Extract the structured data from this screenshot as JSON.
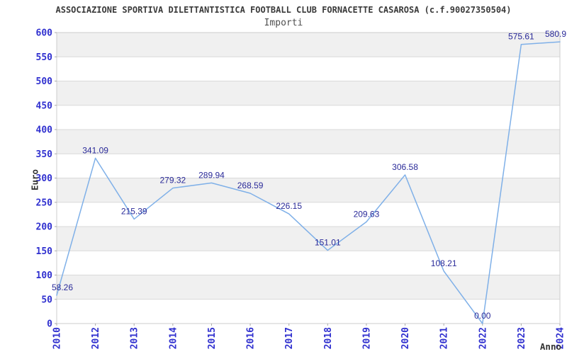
{
  "chart_data": {
    "type": "line",
    "title": "ASSOCIAZIONE SPORTIVA DILETTANTISTICA FOOTBALL CLUB FORNACETTE CASAROSA (c.f.90027350504)",
    "subtitle": "Importi",
    "xlabel": "Anno",
    "ylabel": "Euro",
    "categories": [
      "2010",
      "2012",
      "2013",
      "2014",
      "2015",
      "2016",
      "2017",
      "2018",
      "2019",
      "2020",
      "2021",
      "2022",
      "2023",
      "2024"
    ],
    "values": [
      58.26,
      341.09,
      215.39,
      279.32,
      289.94,
      268.59,
      226.15,
      151.01,
      209.63,
      306.58,
      108.21,
      0.0,
      575.61,
      580.9
    ],
    "point_labels": [
      "58.26",
      "341.09",
      "215.39",
      "279.32",
      "289.94",
      "268.59",
      "226.15",
      "151.01",
      "209.63",
      "306.58",
      "108.21",
      "0.00",
      "575.61",
      "580.9"
    ],
    "ylim": [
      0,
      600
    ],
    "ytick_step": 50,
    "yticks": [
      "0",
      "50",
      "100",
      "150",
      "200",
      "250",
      "300",
      "350",
      "400",
      "450",
      "500",
      "550",
      "600"
    ],
    "grid": "horizontal",
    "legend": "none",
    "colors": {
      "line": "#7fb0e8",
      "value_label": "#2a2a99",
      "tick_label": "#3030cf",
      "band": "#f0f0f0",
      "gridline": "#d9d9d9",
      "plot_border": "#cccccc",
      "tick_mark": "#aaaaaa",
      "title": "#3a3a3a",
      "subtitle": "#4f4f4f",
      "axis_title": "#333333"
    }
  }
}
